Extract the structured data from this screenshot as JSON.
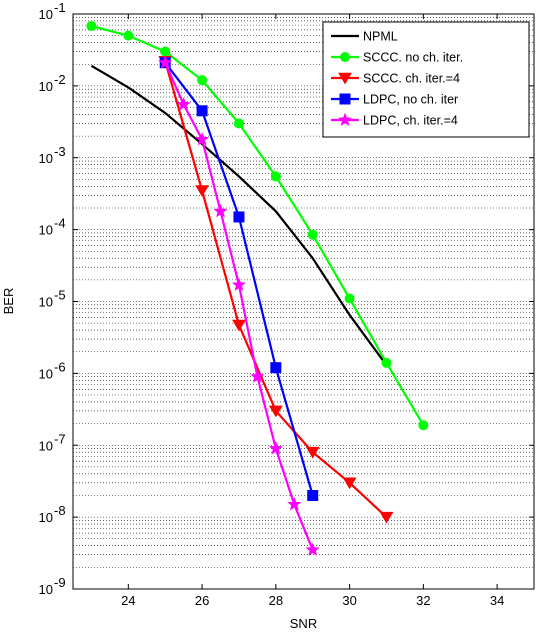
{
  "chart_data": {
    "type": "line",
    "title": "",
    "xlabel": "SNR",
    "ylabel": "BER",
    "xlim": [
      22.5,
      35
    ],
    "ylim": [
      1e-09,
      0.1
    ],
    "yscale": "log",
    "x_ticks": [
      24,
      26,
      28,
      30,
      32,
      34
    ],
    "x_tick_labels": [
      "24",
      "26",
      "28",
      "30",
      "32",
      "34"
    ],
    "y_ticks": [
      1e-09,
      1e-08,
      1e-07,
      1e-06,
      1e-05,
      0.0001,
      0.001,
      0.01,
      0.1
    ],
    "y_tick_labels": [
      {
        "base": "10",
        "exp": "-9"
      },
      {
        "base": "10",
        "exp": "-8"
      },
      {
        "base": "10",
        "exp": "-7"
      },
      {
        "base": "10",
        "exp": "-6"
      },
      {
        "base": "10",
        "exp": "-5"
      },
      {
        "base": "10",
        "exp": "-4"
      },
      {
        "base": "10",
        "exp": "-3"
      },
      {
        "base": "10",
        "exp": "-2"
      },
      {
        "base": "10",
        "exp": "-1"
      }
    ],
    "grid": "dotted-minor-y",
    "legend_position": "top-right",
    "series": [
      {
        "name": "NPML",
        "color": "#000000",
        "marker": "none",
        "x": [
          23,
          24,
          25,
          26,
          27,
          28,
          29,
          30,
          31
        ],
        "y": [
          0.019,
          0.0095,
          0.0042,
          0.00155,
          0.00055,
          0.00018,
          4e-05,
          6.5e-06,
          1.3e-06
        ]
      },
      {
        "name": "SCCC. no ch. iter.",
        "color": "#00ff00",
        "marker": "circle",
        "x": [
          23,
          24,
          25,
          26,
          27,
          28,
          29,
          30,
          31,
          32
        ],
        "y": [
          0.068,
          0.05,
          0.03,
          0.012,
          0.003,
          0.00055,
          8.5e-05,
          1.1e-05,
          1.4e-06,
          1.9e-07
        ]
      },
      {
        "name": "SCCC. ch. iter.=4",
        "color": "#ff0000",
        "marker": "triangle-down",
        "x": [
          25,
          26,
          27,
          28,
          29,
          30,
          31
        ],
        "y": [
          0.022,
          0.00035,
          4.7e-06,
          3e-07,
          8e-08,
          3e-08,
          1e-08
        ]
      },
      {
        "name": "LDPC, no ch. iter",
        "color": "#0000ff",
        "marker": "square",
        "x": [
          25,
          26,
          27,
          28,
          29
        ],
        "y": [
          0.021,
          0.0045,
          0.00015,
          1.2e-06,
          2e-08
        ]
      },
      {
        "name": "LDPC, ch. iter.=4",
        "color": "#ff00ff",
        "marker": "star",
        "x": [
          25,
          25.5,
          26,
          26.5,
          27,
          27.5,
          28,
          28.5,
          29
        ],
        "y": [
          0.021,
          0.0055,
          0.0018,
          0.00018,
          1.7e-05,
          9e-07,
          9e-08,
          1.5e-08,
          3.5e-09
        ]
      }
    ]
  }
}
